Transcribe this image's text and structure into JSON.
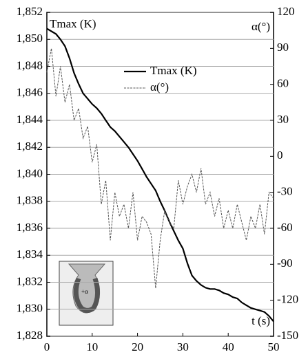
{
  "chart_data": {
    "type": "line",
    "y_label": "Tmax (K)",
    "y2_label": "α(°)",
    "x_label": "t (s)",
    "inset_label": "+α",
    "x": [
      0,
      1,
      2,
      3,
      4,
      5,
      6,
      7,
      8,
      9,
      10,
      11,
      12,
      13,
      14,
      15,
      16,
      17,
      18,
      19,
      20,
      21,
      22,
      23,
      24,
      25,
      26,
      27,
      28,
      29,
      30,
      31,
      32,
      33,
      34,
      35,
      36,
      37,
      38,
      39,
      40,
      41,
      42,
      43,
      44,
      45,
      46,
      47,
      48,
      49,
      50
    ],
    "series": [
      {
        "name": "Tmax (K)",
        "color": "#000000",
        "dash": false,
        "values": [
          1850.8,
          1850.6,
          1850.4,
          1850.0,
          1849.5,
          1848.6,
          1847.5,
          1846.7,
          1846.0,
          1845.6,
          1845.2,
          1844.9,
          1844.5,
          1844.0,
          1843.5,
          1843.2,
          1842.8,
          1842.4,
          1842.0,
          1841.5,
          1841.0,
          1840.4,
          1839.8,
          1839.3,
          1838.8,
          1838.0,
          1837.3,
          1836.5,
          1835.8,
          1835.1,
          1834.5,
          1833.4,
          1832.5,
          1832.1,
          1831.8,
          1831.6,
          1831.5,
          1831.5,
          1831.4,
          1831.2,
          1831.1,
          1830.9,
          1830.8,
          1830.5,
          1830.3,
          1830.1,
          1830.0,
          1829.9,
          1829.8,
          1829.5,
          1829.1
        ]
      },
      {
        "name": "α(°)",
        "color": "#555555",
        "dash": true,
        "axis": "y2",
        "values": [
          70,
          90,
          50,
          75,
          45,
          60,
          30,
          40,
          15,
          25,
          -5,
          10,
          -40,
          -20,
          -70,
          -30,
          -50,
          -40,
          -60,
          -30,
          -70,
          -50,
          -55,
          -65,
          -110,
          -70,
          -45,
          -55,
          -60,
          -20,
          -40,
          -25,
          -15,
          -30,
          -10,
          -40,
          -30,
          -50,
          -35,
          -60,
          -45,
          -60,
          -40,
          -55,
          -70,
          -50,
          -60,
          -40,
          -65,
          -30,
          -35
        ]
      }
    ],
    "xlim": [
      0,
      50
    ],
    "xticks": [
      0,
      10,
      20,
      30,
      40,
      50
    ],
    "ylim": [
      1828,
      1852
    ],
    "yticks": [
      {
        "value": 1828,
        "label": "1,828"
      },
      {
        "value": 1830,
        "label": "1,830"
      },
      {
        "value": 1832,
        "label": "1,832"
      },
      {
        "value": 1834,
        "label": "1,834"
      },
      {
        "value": 1836,
        "label": "1,836"
      },
      {
        "value": 1838,
        "label": "1,838"
      },
      {
        "value": 1840,
        "label": "1,840"
      },
      {
        "value": 1842,
        "label": "1,842"
      },
      {
        "value": 1844,
        "label": "1,844"
      },
      {
        "value": 1846,
        "label": "1,846"
      },
      {
        "value": 1848,
        "label": "1,848"
      },
      {
        "value": 1850,
        "label": "1,850"
      },
      {
        "value": 1852,
        "label": "1,852"
      }
    ],
    "y2lim": [
      -150,
      120
    ],
    "y2ticks": [
      -150,
      -120,
      -90,
      -60,
      -30,
      0,
      30,
      60,
      90,
      120
    ],
    "grid": true
  }
}
